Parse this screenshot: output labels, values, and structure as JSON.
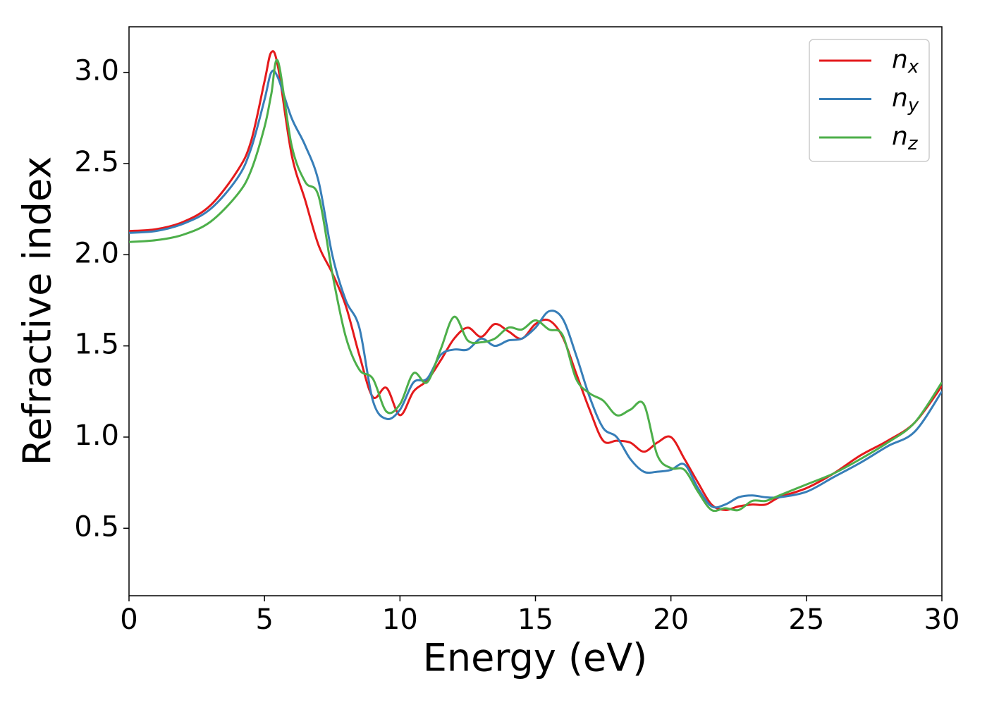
{
  "chart_data": {
    "type": "line",
    "xlabel": "Energy (eV)",
    "ylabel": "Refractive index",
    "x": [
      0,
      1,
      2,
      3,
      4,
      4.5,
      5,
      5.25,
      5.5,
      6,
      6.5,
      7,
      7.5,
      8,
      8.5,
      9,
      9.5,
      10,
      10.5,
      11,
      11.5,
      12,
      12.5,
      13,
      13.5,
      14,
      14.5,
      15,
      15.5,
      16,
      16.5,
      17,
      17.5,
      18,
      18.5,
      19,
      19.5,
      20,
      20.5,
      21,
      21.5,
      22,
      22.5,
      23,
      23.5,
      24,
      25,
      26,
      27,
      28,
      29,
      30
    ],
    "series": [
      {
        "name": "nx",
        "color": "#e41a1c",
        "values": [
          2.13,
          2.14,
          2.18,
          2.27,
          2.46,
          2.62,
          2.95,
          3.11,
          3.03,
          2.55,
          2.3,
          2.05,
          1.9,
          1.72,
          1.45,
          1.22,
          1.27,
          1.12,
          1.25,
          1.31,
          1.42,
          1.54,
          1.6,
          1.55,
          1.62,
          1.58,
          1.54,
          1.62,
          1.64,
          1.55,
          1.35,
          1.15,
          0.98,
          0.98,
          0.97,
          0.92,
          0.97,
          1.0,
          0.88,
          0.75,
          0.63,
          0.6,
          0.62,
          0.63,
          0.63,
          0.67,
          0.72,
          0.8,
          0.9,
          0.98,
          1.08,
          1.28
        ]
      },
      {
        "name": "ny",
        "color": "#377eb8",
        "values": [
          2.12,
          2.13,
          2.17,
          2.25,
          2.42,
          2.58,
          2.85,
          3.0,
          2.97,
          2.75,
          2.6,
          2.4,
          2.0,
          1.75,
          1.6,
          1.2,
          1.1,
          1.15,
          1.3,
          1.32,
          1.45,
          1.48,
          1.48,
          1.54,
          1.5,
          1.53,
          1.54,
          1.6,
          1.69,
          1.65,
          1.45,
          1.22,
          1.05,
          1.0,
          0.88,
          0.81,
          0.81,
          0.82,
          0.85,
          0.72,
          0.62,
          0.63,
          0.67,
          0.68,
          0.67,
          0.67,
          0.7,
          0.78,
          0.86,
          0.95,
          1.03,
          1.25
        ]
      },
      {
        "name": "nz",
        "color": "#4daf4a",
        "values": [
          2.07,
          2.08,
          2.11,
          2.18,
          2.33,
          2.46,
          2.7,
          2.88,
          3.06,
          2.6,
          2.4,
          2.32,
          1.9,
          1.55,
          1.37,
          1.32,
          1.14,
          1.18,
          1.35,
          1.3,
          1.48,
          1.66,
          1.53,
          1.52,
          1.54,
          1.6,
          1.59,
          1.64,
          1.59,
          1.56,
          1.32,
          1.24,
          1.2,
          1.12,
          1.15,
          1.18,
          0.9,
          0.83,
          0.82,
          0.7,
          0.6,
          0.61,
          0.6,
          0.65,
          0.65,
          0.68,
          0.74,
          0.8,
          0.88,
          0.97,
          1.08,
          1.3
        ]
      }
    ],
    "xlim": [
      0,
      30
    ],
    "xticks": [
      0,
      5,
      10,
      15,
      20,
      25,
      30
    ],
    "ylim": [
      0.13,
      3.25
    ],
    "yticks": [
      0.5,
      1.0,
      1.5,
      2.0,
      2.5,
      3.0
    ],
    "legend": "upper right"
  }
}
